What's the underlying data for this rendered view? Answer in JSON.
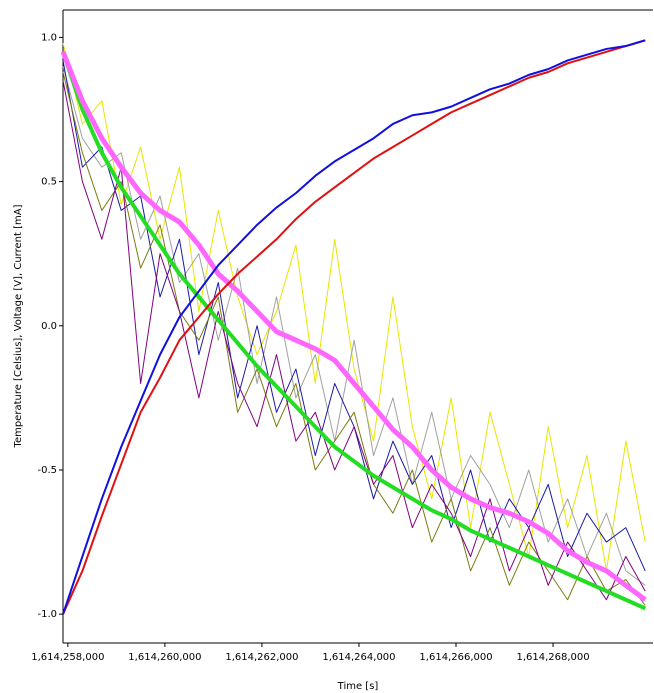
{
  "chart_data": {
    "type": "line",
    "x_label": "Time [s]",
    "y_label": "Temperature [Celsius], Voltage [V], Current [mA]",
    "x": [
      1614257900,
      1614258300,
      1614258700,
      1614259100,
      1614259500,
      1614259900,
      1614260300,
      1614260700,
      1614261100,
      1614261500,
      1614261900,
      1614262300,
      1614262700,
      1614263100,
      1614263500,
      1614263900,
      1614264300,
      1614264700,
      1614265100,
      1614265500,
      1614265900,
      1614266300,
      1614266700,
      1614267100,
      1614267500,
      1614267900,
      1614268300,
      1614268700,
      1614269100,
      1614269500,
      1614269900
    ],
    "xlim": [
      1614257900,
      1614270060
    ],
    "xticks": [
      {
        "value": 1614258000,
        "label": "1,614,258,000"
      },
      {
        "value": 1614260000,
        "label": "1,614,260,000"
      },
      {
        "value": 1614262000,
        "label": "1,614,262,000"
      },
      {
        "value": 1614264000,
        "label": "1,614,264,000"
      },
      {
        "value": 1614266000,
        "label": "1,614,266,000"
      },
      {
        "value": 1614268000,
        "label": "1,614,268,000"
      }
    ],
    "ylim": [
      -1.1,
      1.095
    ],
    "yticks": [
      {
        "value": -1,
        "label": "-1.0"
      },
      {
        "value": -0.5,
        "label": "-0.5"
      },
      {
        "value": 0,
        "label": "0.0"
      },
      {
        "value": 0.5,
        "label": "0.5"
      },
      {
        "value": 1,
        "label": "1.0"
      }
    ],
    "series": [
      {
        "color": "#e6e600",
        "width": 1,
        "values": [
          0.98,
          0.7,
          0.78,
          0.42,
          0.62,
          0.3,
          0.55,
          0.05,
          0.4,
          0.1,
          -0.1,
          0.05,
          0.28,
          -0.2,
          0.3,
          -0.15,
          -0.4,
          0.1,
          -0.35,
          -0.6,
          -0.25,
          -0.7,
          -0.3,
          -0.55,
          -0.8,
          -0.35,
          -0.7,
          -0.45,
          -0.85,
          -0.4,
          -0.75
        ]
      },
      {
        "color": "#a0a0a0",
        "width": 1,
        "values": [
          0.9,
          0.65,
          0.55,
          0.6,
          0.3,
          0.45,
          0.15,
          0.25,
          -0.05,
          0.2,
          -0.2,
          0.1,
          -0.25,
          -0.1,
          -0.4,
          -0.05,
          -0.45,
          -0.25,
          -0.55,
          -0.3,
          -0.6,
          -0.45,
          -0.55,
          -0.7,
          -0.5,
          -0.75,
          -0.6,
          -0.8,
          -0.65,
          -0.85,
          -0.9
        ]
      },
      {
        "color": "#1a1aa8",
        "width": 1,
        "values": [
          0.92,
          0.55,
          0.62,
          0.4,
          0.45,
          0.1,
          0.3,
          -0.1,
          0.15,
          -0.25,
          0.0,
          -0.3,
          -0.15,
          -0.45,
          -0.2,
          -0.35,
          -0.6,
          -0.4,
          -0.55,
          -0.45,
          -0.7,
          -0.5,
          -0.75,
          -0.6,
          -0.7,
          -0.55,
          -0.8,
          -0.65,
          -0.75,
          -0.7,
          -0.85
        ]
      },
      {
        "color": "#7a7a10",
        "width": 1,
        "values": [
          0.88,
          0.6,
          0.4,
          0.5,
          0.2,
          0.35,
          0.05,
          -0.05,
          0.1,
          -0.3,
          -0.15,
          -0.35,
          -0.2,
          -0.5,
          -0.4,
          -0.3,
          -0.55,
          -0.65,
          -0.5,
          -0.75,
          -0.6,
          -0.85,
          -0.7,
          -0.9,
          -0.75,
          -0.85,
          -0.95,
          -0.8,
          -0.92,
          -0.88,
          -0.97
        ]
      },
      {
        "color": "#800080",
        "width": 1,
        "values": [
          0.85,
          0.5,
          0.3,
          0.55,
          -0.2,
          0.25,
          0.05,
          -0.25,
          0.05,
          -0.2,
          -0.35,
          -0.1,
          -0.4,
          -0.3,
          -0.5,
          -0.35,
          -0.55,
          -0.45,
          -0.7,
          -0.55,
          -0.65,
          -0.8,
          -0.6,
          -0.85,
          -0.7,
          -0.9,
          -0.75,
          -0.85,
          -0.95,
          -0.8,
          -0.92
        ]
      },
      {
        "color": "#22dd22",
        "width": 4,
        "values": [
          0.95,
          0.75,
          0.6,
          0.48,
          0.38,
          0.28,
          0.18,
          0.1,
          0.02,
          -0.06,
          -0.14,
          -0.21,
          -0.28,
          -0.35,
          -0.42,
          -0.47,
          -0.52,
          -0.56,
          -0.6,
          -0.64,
          -0.67,
          -0.71,
          -0.74,
          -0.77,
          -0.8,
          -0.83,
          -0.86,
          -0.89,
          -0.92,
          -0.95,
          -0.98
        ]
      },
      {
        "color": "#ff66ff",
        "width": 5,
        "values": [
          0.95,
          0.78,
          0.65,
          0.55,
          0.46,
          0.4,
          0.36,
          0.28,
          0.18,
          0.12,
          0.05,
          -0.02,
          -0.05,
          -0.08,
          -0.12,
          -0.2,
          -0.28,
          -0.36,
          -0.42,
          -0.5,
          -0.56,
          -0.6,
          -0.63,
          -0.65,
          -0.68,
          -0.72,
          -0.78,
          -0.82,
          -0.85,
          -0.9,
          -0.95
        ]
      },
      {
        "color": "#e01010",
        "width": 2,
        "values": [
          -1.0,
          -0.85,
          -0.66,
          -0.48,
          -0.3,
          -0.18,
          -0.05,
          0.03,
          0.11,
          0.18,
          0.24,
          0.3,
          0.37,
          0.43,
          0.48,
          0.53,
          0.58,
          0.62,
          0.66,
          0.7,
          0.74,
          0.77,
          0.8,
          0.83,
          0.86,
          0.88,
          0.91,
          0.93,
          0.95,
          0.97,
          0.99
        ]
      },
      {
        "color": "#1010e0",
        "width": 2,
        "values": [
          -1.0,
          -0.8,
          -0.6,
          -0.42,
          -0.26,
          -0.1,
          0.03,
          0.12,
          0.21,
          0.28,
          0.35,
          0.41,
          0.46,
          0.52,
          0.57,
          0.61,
          0.65,
          0.7,
          0.73,
          0.74,
          0.76,
          0.79,
          0.82,
          0.84,
          0.87,
          0.89,
          0.92,
          0.94,
          0.96,
          0.97,
          0.99
        ]
      }
    ]
  }
}
